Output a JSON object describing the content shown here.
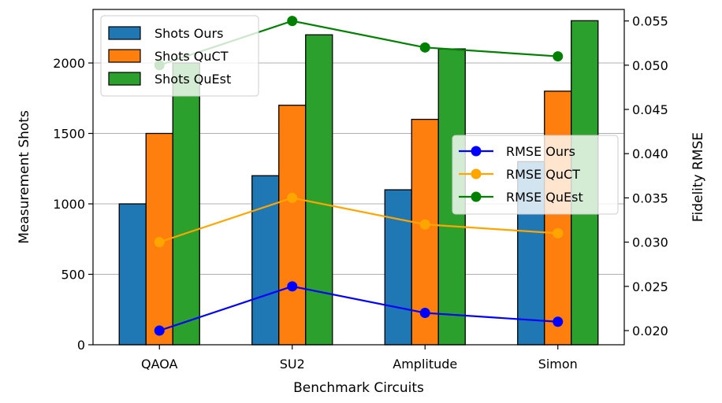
{
  "chart_data": {
    "type": "bar",
    "title": "",
    "xlabel": "Benchmark Circuits",
    "ylabel": "Measurement Shots",
    "y2label": "Fidelity RMSE",
    "categories": [
      "QAOA",
      "SU2",
      "Amplitude",
      "Simon"
    ],
    "ylim": [
      0,
      2380
    ],
    "y2lim": [
      0.0184,
      0.0563
    ],
    "yticks": [
      0,
      500,
      1000,
      1500,
      2000
    ],
    "y2ticks": [
      "0.020",
      "0.025",
      "0.030",
      "0.035",
      "0.040",
      "0.045",
      "0.050",
      "0.055"
    ],
    "grid": "horizontal (right axis)",
    "series": [
      {
        "name": "Shots Ours",
        "kind": "bar",
        "axis": "left",
        "color": "#1f77b4",
        "values": [
          1000,
          1200,
          1100,
          1300
        ]
      },
      {
        "name": "Shots QuCT",
        "kind": "bar",
        "axis": "left",
        "color": "#ff7f0e",
        "values": [
          1500,
          1700,
          1600,
          1800
        ]
      },
      {
        "name": "Shots QuEst",
        "kind": "bar",
        "axis": "left",
        "color": "#2ca02c",
        "values": [
          2000,
          2200,
          2100,
          2300
        ]
      },
      {
        "name": "RMSE Ours",
        "kind": "line",
        "axis": "right",
        "color": "#0000ff",
        "values": [
          0.02,
          0.025,
          0.022,
          0.021
        ]
      },
      {
        "name": "RMSE QuCT",
        "kind": "line",
        "axis": "right",
        "color": "#ffa500",
        "values": [
          0.03,
          0.035,
          0.032,
          0.031
        ]
      },
      {
        "name": "RMSE QuEst",
        "kind": "line",
        "axis": "right",
        "color": "#008000",
        "values": [
          0.05,
          0.055,
          0.052,
          0.051
        ]
      }
    ],
    "legends": [
      {
        "placement": "top-left",
        "entries": [
          "Shots Ours",
          "Shots QuCT",
          "Shots QuEst"
        ]
      },
      {
        "placement": "center-right",
        "entries": [
          "RMSE Ours",
          "RMSE QuCT",
          "RMSE QuEst"
        ]
      }
    ]
  }
}
